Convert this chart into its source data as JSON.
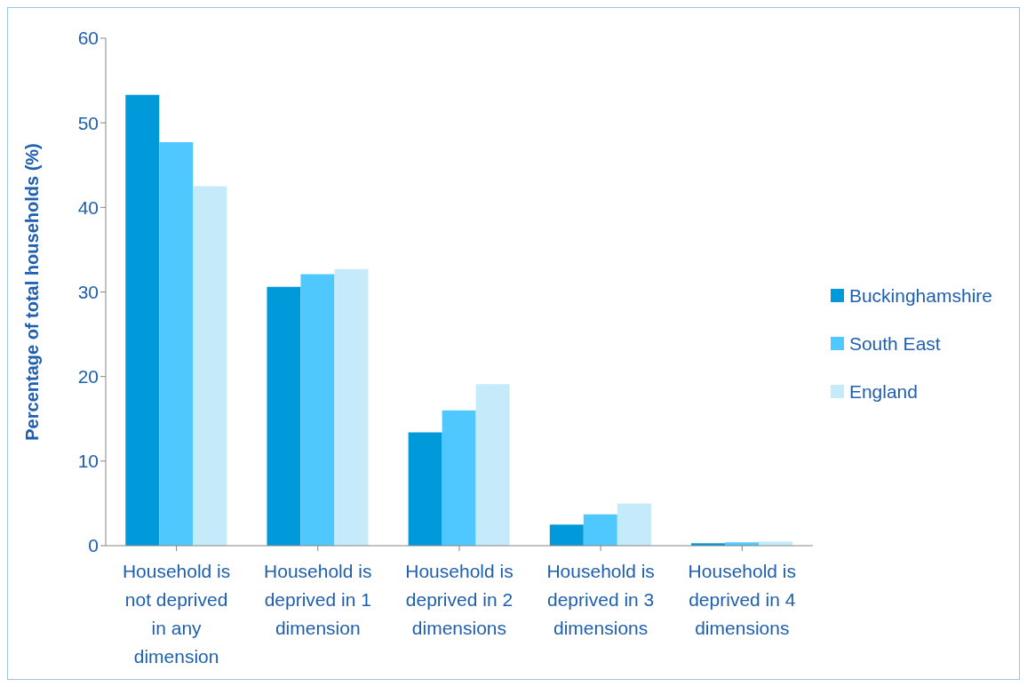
{
  "chart_data": {
    "type": "bar",
    "ylabel": "Percentage of total households (%)",
    "categories": [
      "Household is not deprived in any dimension",
      "Household is deprived in 1 dimension",
      "Household is deprived in 2 dimensions",
      "Household is deprived in 3 dimensions",
      "Household is deprived in 4 dimensions"
    ],
    "series": [
      {
        "name": "Buckinghamshire",
        "color": "#009ada",
        "values": [
          53.3,
          30.6,
          13.4,
          2.5,
          0.3
        ]
      },
      {
        "name": "South East",
        "color": "#4fc8ff",
        "values": [
          47.7,
          32.1,
          16.0,
          3.7,
          0.4
        ]
      },
      {
        "name": "England",
        "color": "#c5ebfb",
        "values": [
          42.5,
          32.7,
          19.1,
          5.0,
          0.5
        ]
      }
    ],
    "ylim": [
      0,
      60
    ],
    "yticks": [
      0,
      10,
      20,
      30,
      40,
      50,
      60
    ],
    "legend": "right"
  }
}
